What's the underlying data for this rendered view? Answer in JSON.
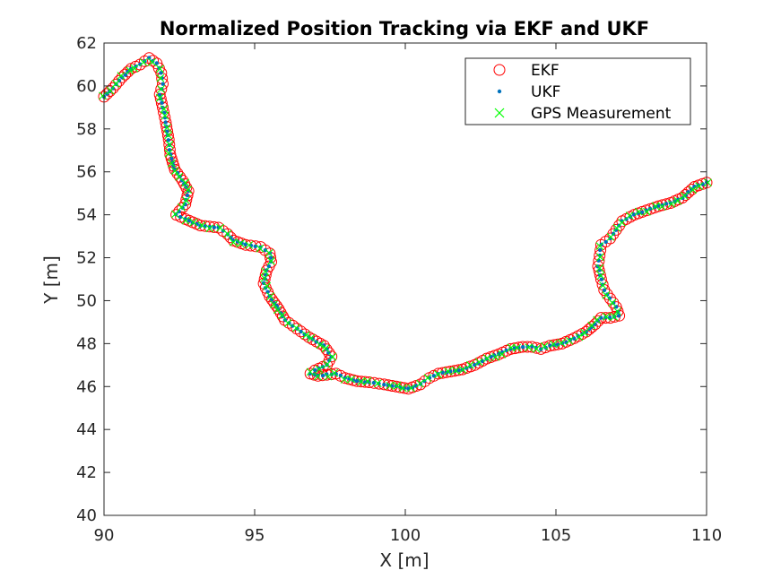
{
  "chart_data": {
    "type": "scatter",
    "title": "Normalized Position Tracking via EKF and UKF",
    "xlabel": "X [m]",
    "ylabel": "Y [m]",
    "xlim": [
      90,
      110
    ],
    "ylim": [
      40,
      62
    ],
    "xticks": [
      90,
      95,
      100,
      105,
      110
    ],
    "yticks": [
      40,
      42,
      44,
      46,
      48,
      50,
      52,
      54,
      56,
      58,
      60,
      62
    ],
    "grid": false,
    "legend_position": "top-right",
    "colors": {
      "ekf": "#ff0000",
      "ukf": "#0072bd",
      "gps": "#00ff00"
    },
    "path": [
      [
        90.0,
        59.5
      ],
      [
        90.3,
        59.9
      ],
      [
        90.6,
        60.4
      ],
      [
        90.9,
        60.8
      ],
      [
        91.2,
        61.0
      ],
      [
        91.5,
        61.3
      ],
      [
        91.75,
        61.05
      ],
      [
        91.9,
        60.6
      ],
      [
        91.95,
        60.1
      ],
      [
        91.85,
        59.6
      ],
      [
        91.95,
        59.0
      ],
      [
        92.05,
        58.3
      ],
      [
        92.15,
        57.5
      ],
      [
        92.2,
        56.8
      ],
      [
        92.35,
        56.1
      ],
      [
        92.6,
        55.6
      ],
      [
        92.8,
        55.1
      ],
      [
        92.7,
        54.5
      ],
      [
        92.4,
        54.0
      ],
      [
        92.7,
        53.8
      ],
      [
        93.2,
        53.5
      ],
      [
        93.8,
        53.4
      ],
      [
        94.1,
        53.1
      ],
      [
        94.3,
        52.8
      ],
      [
        94.7,
        52.6
      ],
      [
        95.2,
        52.5
      ],
      [
        95.5,
        52.2
      ],
      [
        95.55,
        51.8
      ],
      [
        95.4,
        51.4
      ],
      [
        95.3,
        50.8
      ],
      [
        95.5,
        50.2
      ],
      [
        95.8,
        49.6
      ],
      [
        96.0,
        49.1
      ],
      [
        96.4,
        48.7
      ],
      [
        96.8,
        48.3
      ],
      [
        97.3,
        47.9
      ],
      [
        97.55,
        47.4
      ],
      [
        97.4,
        47.0
      ],
      [
        97.0,
        46.75
      ],
      [
        96.85,
        46.6
      ],
      [
        97.1,
        46.5
      ],
      [
        97.4,
        46.55
      ],
      [
        97.7,
        46.6
      ],
      [
        98.0,
        46.4
      ],
      [
        98.4,
        46.25
      ],
      [
        98.8,
        46.2
      ],
      [
        99.3,
        46.1
      ],
      [
        99.7,
        46.0
      ],
      [
        100.1,
        45.9
      ],
      [
        100.5,
        46.1
      ],
      [
        100.8,
        46.4
      ],
      [
        101.1,
        46.6
      ],
      [
        101.5,
        46.7
      ],
      [
        101.9,
        46.8
      ],
      [
        102.3,
        47.0
      ],
      [
        102.7,
        47.3
      ],
      [
        103.1,
        47.5
      ],
      [
        103.5,
        47.75
      ],
      [
        103.9,
        47.85
      ],
      [
        104.2,
        47.85
      ],
      [
        104.5,
        47.75
      ],
      [
        104.8,
        47.9
      ],
      [
        105.2,
        48.0
      ],
      [
        105.6,
        48.25
      ],
      [
        106.0,
        48.55
      ],
      [
        106.3,
        48.9
      ],
      [
        106.5,
        49.2
      ],
      [
        106.8,
        49.2
      ],
      [
        107.1,
        49.3
      ],
      [
        107.0,
        49.7
      ],
      [
        106.8,
        50.1
      ],
      [
        106.6,
        50.5
      ],
      [
        106.5,
        51.0
      ],
      [
        106.4,
        51.6
      ],
      [
        106.45,
        52.1
      ],
      [
        106.5,
        52.6
      ],
      [
        106.8,
        52.9
      ],
      [
        107.0,
        53.3
      ],
      [
        107.2,
        53.7
      ],
      [
        107.6,
        54.0
      ],
      [
        108.0,
        54.2
      ],
      [
        108.4,
        54.4
      ],
      [
        108.8,
        54.55
      ],
      [
        109.2,
        54.8
      ],
      [
        109.6,
        55.3
      ],
      [
        110.0,
        55.5
      ]
    ],
    "series": [
      {
        "name": "EKF",
        "marker": "circle"
      },
      {
        "name": "UKF",
        "marker": "dot"
      },
      {
        "name": "GPS Measurement",
        "marker": "x"
      }
    ]
  }
}
